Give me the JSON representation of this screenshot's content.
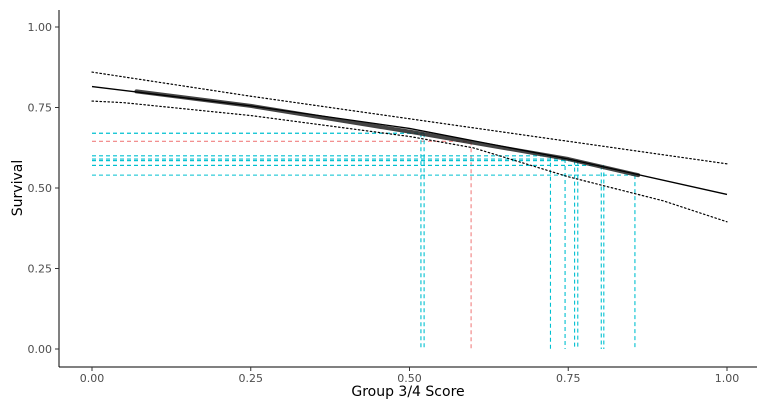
{
  "chart_data": {
    "type": "line",
    "title": "",
    "xlabel": "Group 3/4 Score",
    "ylabel": "Survival",
    "xlim": [
      -0.05,
      1.05
    ],
    "ylim": [
      -0.05,
      1.05
    ],
    "grid": false,
    "legend": "none",
    "x_ticks": [
      "0.00",
      "0.25",
      "0.50",
      "0.75",
      "1.00"
    ],
    "x_tick_values": [
      0,
      0.25,
      0.5,
      0.75,
      1.0
    ],
    "y_ticks": [
      "0.00",
      "0.25",
      "0.50",
      "0.75",
      "1.00"
    ],
    "y_tick_values": [
      0,
      0.25,
      0.5,
      0.75,
      1.0
    ],
    "series": [
      {
        "role": "fit",
        "style": "solid",
        "color": "#000000",
        "x": [
          0,
          0.25,
          0.5,
          0.75,
          1.0
        ],
        "y": [
          0.815,
          0.755,
          0.685,
          0.59,
          0.48
        ]
      },
      {
        "role": "upper-bound",
        "style": "dotted",
        "color": "#000000",
        "x": [
          0,
          0.05,
          0.25,
          0.5,
          0.75,
          1.0
        ],
        "y": [
          0.86,
          0.845,
          0.785,
          0.715,
          0.645,
          0.575
        ]
      },
      {
        "role": "lower-bound",
        "style": "dotted",
        "color": "#000000",
        "x": [
          0,
          0.05,
          0.25,
          0.5,
          0.6,
          0.75,
          0.9,
          1.0
        ],
        "y": [
          0.77,
          0.765,
          0.725,
          0.66,
          0.625,
          0.535,
          0.46,
          0.395
        ]
      }
    ],
    "fit_band": {
      "color": "#222222",
      "x": [
        0.07,
        0.25,
        0.5,
        0.75,
        0.86
      ],
      "y": [
        0.8,
        0.755,
        0.675,
        0.59,
        0.54
      ]
    },
    "reference_lines": [
      {
        "x": 0.597,
        "y": 0.645,
        "color": "#f08080"
      },
      {
        "x": 0.518,
        "y": 0.67,
        "color": "#00c0d0"
      },
      {
        "x": 0.523,
        "y": 0.67,
        "color": "#00c0d0"
      },
      {
        "x": 0.722,
        "y": 0.6,
        "color": "#00c0d0"
      },
      {
        "x": 0.745,
        "y": 0.59,
        "color": "#00c0d0"
      },
      {
        "x": 0.76,
        "y": 0.585,
        "color": "#00c0d0"
      },
      {
        "x": 0.765,
        "y": 0.585,
        "color": "#00c0d0"
      },
      {
        "x": 0.802,
        "y": 0.57,
        "color": "#00c0d0"
      },
      {
        "x": 0.806,
        "y": 0.57,
        "color": "#00c0d0"
      },
      {
        "x": 0.855,
        "y": 0.54,
        "color": "#00c0d0"
      }
    ]
  }
}
